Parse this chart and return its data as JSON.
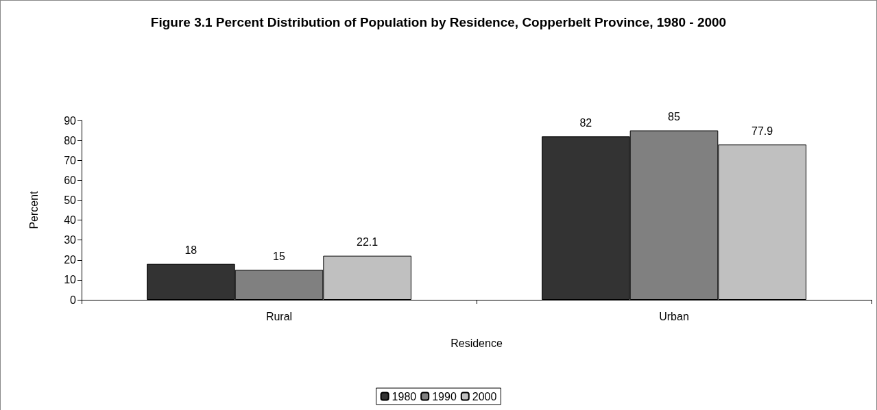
{
  "chart_data": {
    "type": "bar",
    "title": "Figure 3.1 Percent Distribution of Population by Residence, Copperbelt Province, 1980 - 2000",
    "xlabel": "Residence",
    "ylabel": "Percent",
    "categories": [
      "Rural",
      "Urban"
    ],
    "series": [
      {
        "name": "1980",
        "color": "#333333",
        "values": [
          18,
          82
        ]
      },
      {
        "name": "1990",
        "color": "#808080",
        "values": [
          15,
          85
        ]
      },
      {
        "name": "2000",
        "color": "#c0c0c0",
        "values": [
          22.1,
          77.9
        ]
      }
    ],
    "ylim": [
      0,
      90
    ],
    "yticks": [
      0,
      10,
      20,
      30,
      40,
      50,
      60,
      70,
      80,
      90
    ],
    "grid": false,
    "legend": "bottom",
    "data_labels": true
  }
}
